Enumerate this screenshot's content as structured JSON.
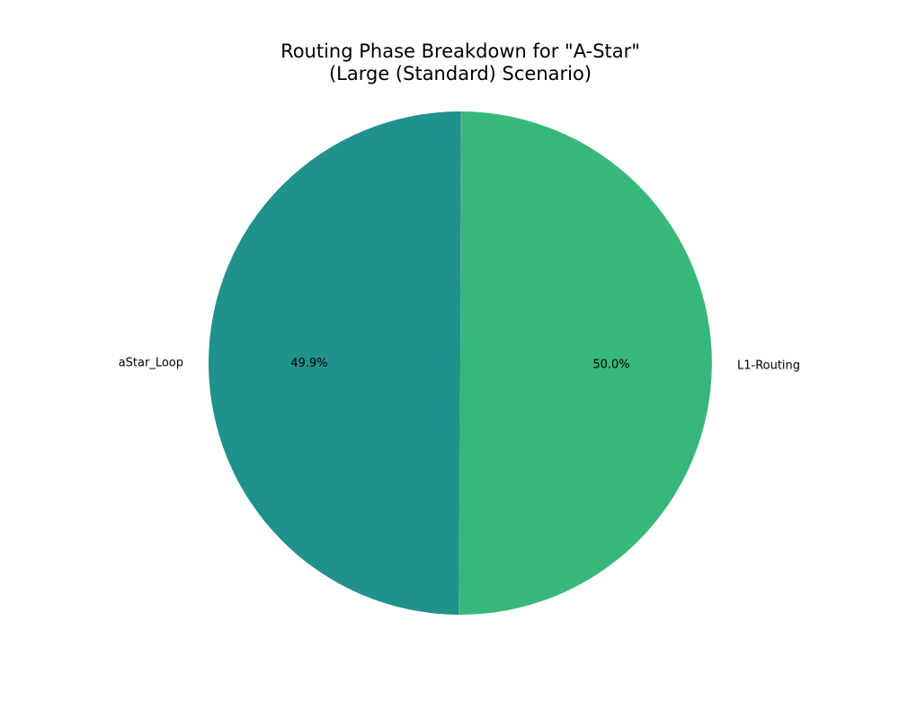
{
  "chart_data": {
    "type": "pie",
    "title_lines": [
      "Routing Phase Breakdown for \"A-Star\"",
      "(Large (Standard) Scenario)"
    ],
    "start_angle_deg": 90,
    "direction": "counterclockwise",
    "slices": [
      {
        "label": "aStar_Loop",
        "value": 49.9,
        "pct_label": "49.9%",
        "color": "#21918c"
      },
      {
        "label": "L1-Routing",
        "value": 50.0,
        "pct_label": "50.0%",
        "color": "#37b87b"
      },
      {
        "label": "",
        "value": 0.1,
        "pct_label": "",
        "color": "#5aa0a0"
      }
    ],
    "legend": "none"
  }
}
